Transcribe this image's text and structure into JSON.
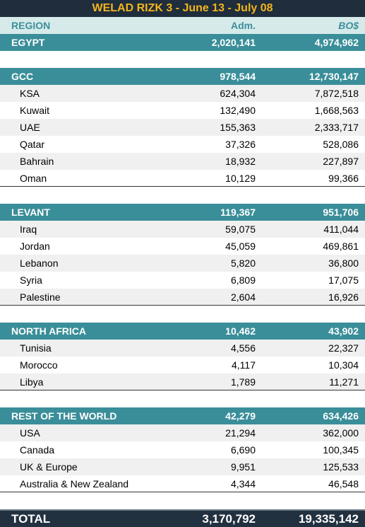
{
  "title": "WELAD RIZK 3 - June 13 - July 08",
  "columns": [
    "REGION",
    "Adm.",
    "BO$"
  ],
  "sections": [
    {
      "region": "EGYPT",
      "adm": "2,020,141",
      "bo": "4,974,962",
      "rows": []
    },
    {
      "region": "GCC",
      "adm": "978,544",
      "bo": "12,730,147",
      "rows": [
        {
          "name": "KSA",
          "adm": "624,304",
          "bo": "7,872,518"
        },
        {
          "name": "Kuwait",
          "adm": "132,490",
          "bo": "1,668,563"
        },
        {
          "name": "UAE",
          "adm": "155,363",
          "bo": "2,333,717"
        },
        {
          "name": "Qatar",
          "adm": "37,326",
          "bo": "528,086"
        },
        {
          "name": "Bahrain",
          "adm": "18,932",
          "bo": "227,897"
        },
        {
          "name": "Oman",
          "adm": "10,129",
          "bo": "99,366"
        }
      ]
    },
    {
      "region": "LEVANT",
      "adm": "119,367",
      "bo": "951,706",
      "rows": [
        {
          "name": "Iraq",
          "adm": "59,075",
          "bo": "411,044"
        },
        {
          "name": "Jordan",
          "adm": "45,059",
          "bo": "469,861"
        },
        {
          "name": "Lebanon",
          "adm": "5,820",
          "bo": "36,800"
        },
        {
          "name": "Syria",
          "adm": "6,809",
          "bo": "17,075"
        },
        {
          "name": "Palestine",
          "adm": "2,604",
          "bo": "16,926"
        }
      ]
    },
    {
      "region": "NORTH AFRICA",
      "adm": "10,462",
      "bo": "43,902",
      "rows": [
        {
          "name": "Tunisia",
          "adm": "4,556",
          "bo": "22,327"
        },
        {
          "name": "Morocco",
          "adm": "4,117",
          "bo": "10,304"
        },
        {
          "name": "Libya",
          "adm": "1,789",
          "bo": "11,271"
        }
      ]
    },
    {
      "region": "REST OF THE WORLD",
      "adm": "42,279",
      "bo": "634,426",
      "rows": [
        {
          "name": "USA",
          "adm": "21,294",
          "bo": "362,000"
        },
        {
          "name": "Canada",
          "adm": "6,690",
          "bo": "100,345"
        },
        {
          "name": "UK & Europe",
          "adm": "9,951",
          "bo": "125,533"
        },
        {
          "name": "Australia & New Zealand",
          "adm": "4,344",
          "bo": "46,548"
        }
      ]
    }
  ],
  "total": {
    "label": "TOTAL",
    "adm": "3,170,792",
    "bo": "19,335,142"
  }
}
